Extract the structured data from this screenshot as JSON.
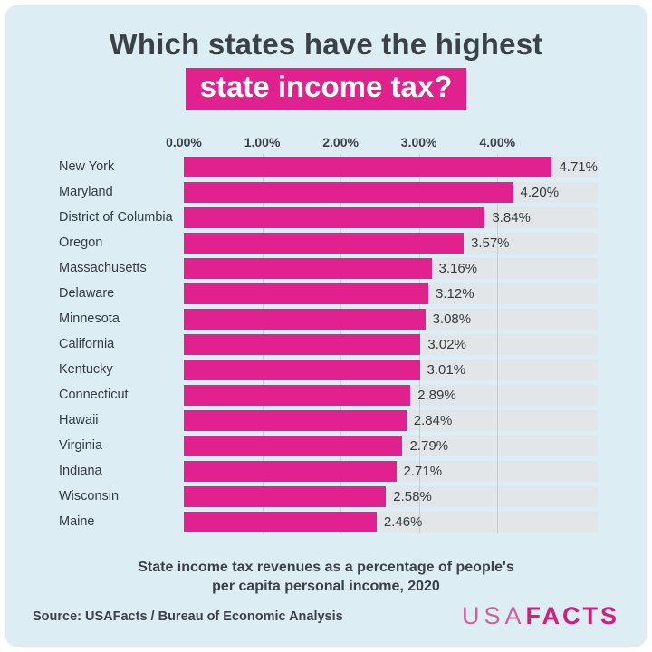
{
  "title": {
    "line1": "Which states have the highest",
    "highlight": "state income tax?"
  },
  "chart_data": {
    "type": "bar",
    "orientation": "horizontal",
    "title": "Which states have the highest state income tax?",
    "subtitle": "State income tax revenues as a percentage of people's per capita personal income, 2020",
    "categories": [
      "New York",
      "Maryland",
      "District of Columbia",
      "Oregon",
      "Massachusetts",
      "Delaware",
      "Minnesota",
      "California",
      "Kentucky",
      "Connecticut",
      "Hawaii",
      "Virginia",
      "Indiana",
      "Wisconsin",
      "Maine"
    ],
    "values": [
      4.71,
      4.2,
      3.84,
      3.57,
      3.16,
      3.12,
      3.08,
      3.02,
      3.01,
      2.89,
      2.84,
      2.79,
      2.71,
      2.58,
      2.46
    ],
    "value_labels": [
      "4.71%",
      "4.20%",
      "3.84%",
      "3.57%",
      "3.16%",
      "3.12%",
      "3.08%",
      "3.02%",
      "3.01%",
      "2.89%",
      "2.84%",
      "2.79%",
      "2.71%",
      "2.58%",
      "2.46%"
    ],
    "x_ticks": [
      "0.00%",
      "1.00%",
      "2.00%",
      "3.00%",
      "4.00%"
    ],
    "x_tick_values": [
      0,
      1,
      2,
      3,
      4
    ],
    "xlim": [
      0,
      5.28
    ],
    "grid": true,
    "legend": "none",
    "bar_color": "#e0218e",
    "track_color": "#e2e6e8"
  },
  "caption": {
    "line1": "State income tax revenues as a percentage of people's",
    "line2": "per capita personal income, 2020"
  },
  "footer": {
    "source": "Source: USAFacts / Bureau of Economic Analysis",
    "logo_usa": "USA",
    "logo_facts": "FACTS"
  },
  "colors": {
    "background": "#ddedf4",
    "accent_pink": "#e0218e",
    "track_gray": "#e2e6e8",
    "text_dark": "#3a4147",
    "logo_usa_pink": "#c9639e",
    "logo_facts_pink": "#d11f7d"
  }
}
